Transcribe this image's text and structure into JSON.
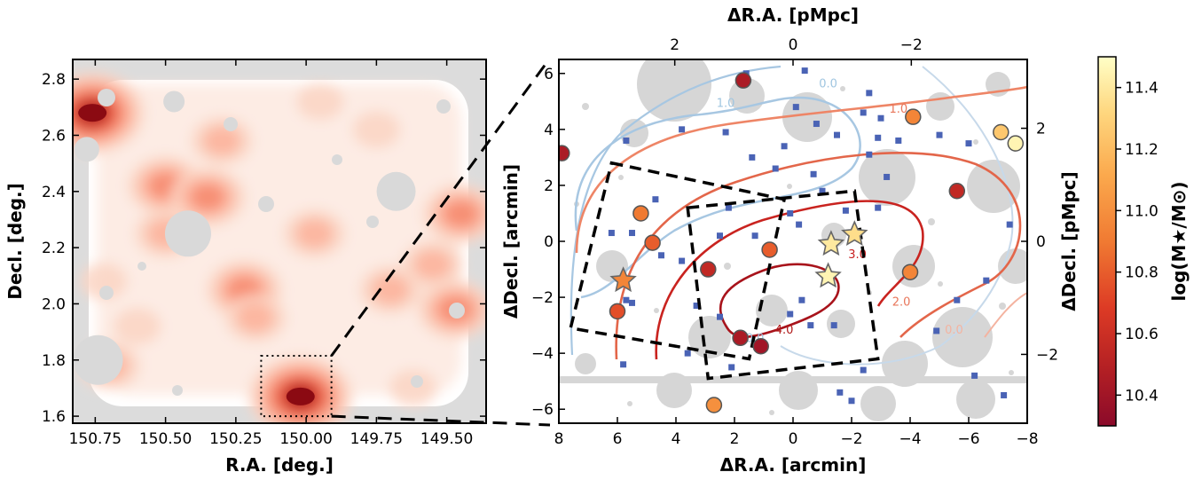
{
  "chart_data": [
    {
      "type": "heatmap",
      "panel": "left",
      "xlabel": "R.A. [deg.]",
      "ylabel": "Decl. [deg.]",
      "xlim": [
        150.83,
        149.36
      ],
      "ylim": [
        1.575,
        2.87
      ],
      "x_ticks": [
        150.75,
        150.5,
        150.25,
        150.0,
        149.75,
        149.5
      ],
      "x_tick_labels": [
        "150.75",
        "150.50",
        "150.25",
        "150.00",
        "149.75",
        "149.50"
      ],
      "y_ticks": [
        1.6,
        1.8,
        2.0,
        2.2,
        2.4,
        2.6,
        2.8
      ],
      "y_tick_labels": [
        "1.6",
        "1.8",
        "2.0",
        "2.2",
        "2.4",
        "2.6",
        "2.8"
      ],
      "zoom_box": {
        "ra": [
          149.91,
          150.16
        ],
        "dec": [
          1.6,
          1.815
        ]
      },
      "overdensity_peaks": [
        {
          "ra": 150.76,
          "dec": 2.68,
          "level": 5
        },
        {
          "ra": 150.02,
          "dec": 1.67,
          "level": 5
        },
        {
          "ra": 150.5,
          "dec": 2.42,
          "level": 3
        },
        {
          "ra": 150.35,
          "dec": 2.38,
          "level": 3
        },
        {
          "ra": 150.3,
          "dec": 2.58,
          "level": 2
        },
        {
          "ra": 150.5,
          "dec": 2.25,
          "level": 2
        },
        {
          "ra": 150.22,
          "dec": 2.05,
          "level": 3
        },
        {
          "ra": 150.18,
          "dec": 1.95,
          "level": 2
        },
        {
          "ra": 149.97,
          "dec": 2.25,
          "level": 2
        },
        {
          "ra": 149.7,
          "dec": 2.05,
          "level": 2
        },
        {
          "ra": 149.47,
          "dec": 1.98,
          "level": 3
        },
        {
          "ra": 149.45,
          "dec": 2.32,
          "level": 3
        },
        {
          "ra": 149.55,
          "dec": 2.14,
          "level": 2
        },
        {
          "ra": 150.72,
          "dec": 2.08,
          "level": 1
        },
        {
          "ra": 150.7,
          "dec": 1.78,
          "level": 2
        },
        {
          "ra": 149.95,
          "dec": 2.72,
          "level": 1
        },
        {
          "ra": 149.75,
          "dec": 2.62,
          "level": 1
        },
        {
          "ra": 150.6,
          "dec": 1.92,
          "level": 1
        },
        {
          "ra": 149.62,
          "dec": 1.7,
          "level": 1
        }
      ],
      "masked_regions": [
        {
          "ra": 150.42,
          "dec": 2.25
        },
        {
          "ra": 149.68,
          "dec": 2.4
        },
        {
          "ra": 150.74,
          "dec": 1.8
        },
        {
          "ra": 150.78,
          "dec": 2.55
        },
        {
          "ra": 150.47,
          "dec": 2.72
        }
      ]
    },
    {
      "type": "scatter",
      "panel": "right",
      "xlabel": "ΔR.A. [arcmin]",
      "ylabel": "ΔDecl. [arcmin]",
      "x2label": "ΔR.A. [pMpc]",
      "y2label": "ΔDecl. [pMpc]",
      "xlim": [
        8,
        -8
      ],
      "ylim": [
        -6.5,
        6.5
      ],
      "x_ticks": [
        8,
        6,
        4,
        2,
        0,
        -2,
        -4,
        -6,
        -8
      ],
      "x_tick_labels": [
        "8",
        "6",
        "4",
        "2",
        "0",
        "−2",
        "−4",
        "−6",
        "−8"
      ],
      "y_ticks": [
        -6,
        -4,
        -2,
        0,
        2,
        4,
        6
      ],
      "y_tick_labels": [
        "−6",
        "−4",
        "−2",
        "0",
        "2",
        "4",
        "6"
      ],
      "x2_ticks": [
        2,
        0,
        -2
      ],
      "x2_tick_labels": [
        "2",
        "0",
        "−2"
      ],
      "y2_ticks": [
        2,
        0,
        -2
      ],
      "y2_tick_labels": [
        "2",
        "0",
        "−2"
      ],
      "pmpc_per_arcmin": 0.495,
      "contour_labels": [
        {
          "text": "1.0",
          "x": 2.3,
          "y": 4.8,
          "color": "#9fc5e0"
        },
        {
          "text": "0.0",
          "x": -1.2,
          "y": 5.5,
          "color": "#9fc5e0"
        },
        {
          "text": "1.0",
          "x": -3.6,
          "y": 4.6,
          "color": "#e8765a"
        },
        {
          "text": "3.0",
          "x": -2.2,
          "y": -0.6,
          "color": "#c71f1f"
        },
        {
          "text": "2.0",
          "x": -3.7,
          "y": -2.3,
          "color": "#e8765a"
        },
        {
          "text": "4.0",
          "x": 0.3,
          "y": -3.3,
          "color": "#b01818"
        },
        {
          "text": "0.0",
          "x": -5.5,
          "y": -3.3,
          "color": "#f4b3a0"
        },
        {
          "text": "0.0",
          "x": 1.3,
          "y": -3.6,
          "color": "#9fc5e0"
        }
      ],
      "massive_galaxies": [
        {
          "x": 1.7,
          "y": 5.75,
          "logm": 10.45
        },
        {
          "x": 7.9,
          "y": 3.15,
          "logm": 10.45
        },
        {
          "x": -4.1,
          "y": 4.45,
          "logm": 10.95
        },
        {
          "x": -7.1,
          "y": 3.9,
          "logm": 11.25
        },
        {
          "x": -7.6,
          "y": 3.5,
          "logm": 11.45
        },
        {
          "x": -5.6,
          "y": 1.8,
          "logm": 10.55
        },
        {
          "x": 5.2,
          "y": 1.0,
          "logm": 10.9
        },
        {
          "x": 4.8,
          "y": -0.05,
          "logm": 10.8
        },
        {
          "x": 2.9,
          "y": -1.0,
          "logm": 10.55
        },
        {
          "x": 0.8,
          "y": -0.3,
          "logm": 10.8
        },
        {
          "x": 6.0,
          "y": -2.5,
          "logm": 10.75
        },
        {
          "x": 1.8,
          "y": -3.45,
          "logm": 10.45
        },
        {
          "x": 1.1,
          "y": -3.75,
          "logm": 10.4
        },
        {
          "x": -4.0,
          "y": -1.1,
          "logm": 10.95
        },
        {
          "x": 2.7,
          "y": -5.85,
          "logm": 11.0
        }
      ],
      "star_markers": [
        {
          "x": 5.8,
          "y": -1.4,
          "logm": 10.95
        },
        {
          "x": -1.3,
          "y": -0.1,
          "logm": 11.4
        },
        {
          "x": -2.1,
          "y": 0.25,
          "logm": 11.35
        },
        {
          "x": -1.2,
          "y": -1.25,
          "logm": 11.45
        }
      ],
      "small_sources": [
        [
          1.6,
          6.0
        ],
        [
          -0.4,
          6.1
        ],
        [
          -2.6,
          5.3
        ],
        [
          -0.1,
          4.8
        ],
        [
          -2.4,
          4.6
        ],
        [
          -3.0,
          4.4
        ],
        [
          -0.8,
          4.2
        ],
        [
          -1.5,
          3.8
        ],
        [
          -2.9,
          3.7
        ],
        [
          -3.6,
          3.6
        ],
        [
          5.7,
          3.6
        ],
        [
          3.8,
          4.0
        ],
        [
          2.3,
          3.9
        ],
        [
          -5.0,
          3.8
        ],
        [
          -6.0,
          3.5
        ],
        [
          0.3,
          3.4
        ],
        [
          1.4,
          3.0
        ],
        [
          -2.6,
          3.1
        ],
        [
          0.6,
          2.6
        ],
        [
          -0.7,
          2.4
        ],
        [
          -3.2,
          2.3
        ],
        [
          -1.0,
          1.8
        ],
        [
          -1.8,
          1.1
        ],
        [
          2.2,
          1.2
        ],
        [
          0.1,
          1.0
        ],
        [
          -2.9,
          1.2
        ],
        [
          -0.2,
          0.6
        ],
        [
          4.7,
          1.5
        ],
        [
          2.5,
          0.2
        ],
        [
          1.3,
          0.2
        ],
        [
          5.5,
          0.3
        ],
        [
          6.2,
          0.3
        ],
        [
          4.5,
          -0.5
        ],
        [
          3.8,
          -0.7
        ],
        [
          5.7,
          -2.1
        ],
        [
          5.5,
          -2.2
        ],
        [
          3.3,
          -2.3
        ],
        [
          2.5,
          -2.7
        ],
        [
          0.1,
          -2.6
        ],
        [
          -0.3,
          -2.1
        ],
        [
          -0.6,
          -3.0
        ],
        [
          -1.4,
          -3.0
        ],
        [
          -2.4,
          -4.6
        ],
        [
          -1.6,
          -5.4
        ],
        [
          -2.0,
          -5.7
        ],
        [
          -7.2,
          -5.5
        ],
        [
          -5.6,
          -2.1
        ],
        [
          -6.2,
          -4.8
        ],
        [
          2.1,
          -4.5
        ],
        [
          3.6,
          -4.0
        ],
        [
          5.8,
          -4.4
        ],
        [
          -4.9,
          -3.2
        ],
        [
          -6.6,
          -1.4
        ],
        [
          -7.4,
          0.6
        ]
      ],
      "survey_boxes": [
        {
          "corners": [
            [
              6.2,
              2.8
            ],
            [
              0.3,
              1.5
            ],
            [
              1.5,
              -4.2
            ],
            [
              7.6,
              -3.1
            ]
          ]
        },
        {
          "corners": [
            [
              3.6,
              1.2
            ],
            [
              -2.1,
              1.8
            ],
            [
              -2.9,
              -4.2
            ],
            [
              2.9,
              -4.9
            ]
          ]
        }
      ]
    },
    {
      "type": "colorbar",
      "label": "log(M★/M⊙)",
      "range": [
        10.3,
        11.5
      ],
      "ticks": [
        10.4,
        10.6,
        10.8,
        11.0,
        11.2,
        11.4
      ],
      "tick_labels": [
        "10.4",
        "10.6",
        "10.8",
        "11.0",
        "11.2",
        "11.4"
      ]
    }
  ]
}
